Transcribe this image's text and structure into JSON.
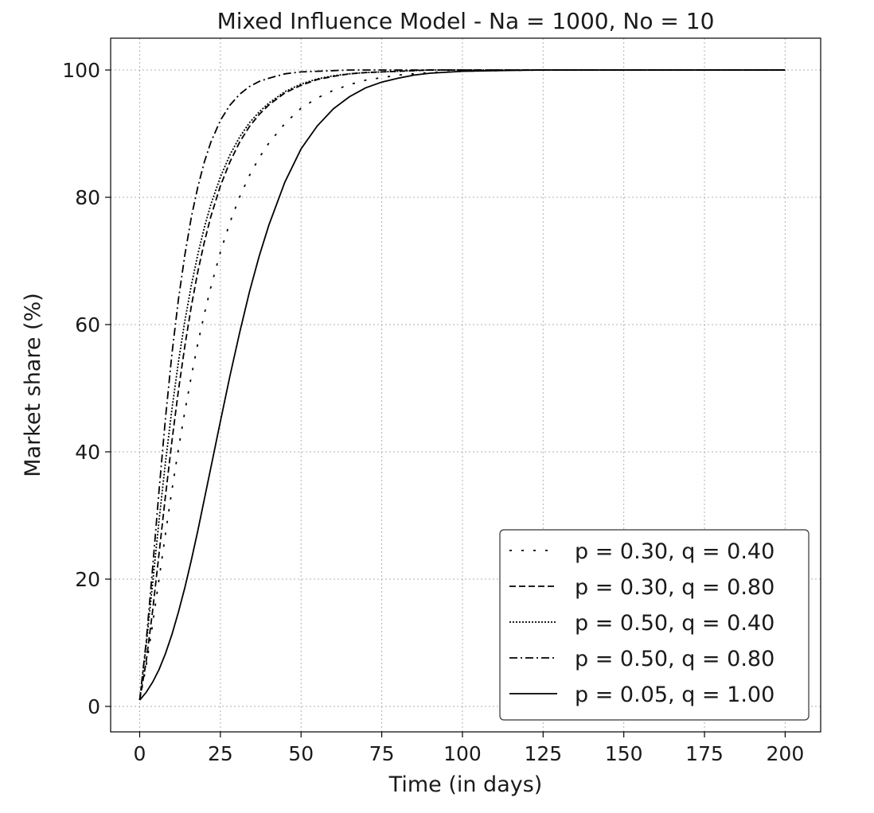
{
  "chart_data": {
    "type": "line",
    "title": "Mixed Influence Model - Na = 1000, No = 10",
    "xlabel": "Time (in days)",
    "ylabel": "Market share (%)",
    "xlim": [
      -9,
      211
    ],
    "ylim": [
      -4,
      105
    ],
    "xticks": [
      0,
      25,
      50,
      75,
      100,
      125,
      150,
      175,
      200
    ],
    "yticks": [
      0,
      20,
      40,
      60,
      80,
      100
    ],
    "grid": true,
    "legend_position": "bottom-right",
    "x": [
      0,
      2,
      4,
      6,
      8,
      10,
      12,
      14,
      16,
      18,
      20,
      22,
      25,
      28,
      31,
      34,
      37,
      40,
      45,
      50,
      55,
      60,
      65,
      70,
      75,
      80,
      85,
      90,
      100,
      110,
      125,
      150,
      175,
      200
    ],
    "series": [
      {
        "name": "p = 0.30, q = 0.40",
        "dash": "3 12",
        "values": [
          1.0,
          6.3,
          12.9,
          20.0,
          27.1,
          34.0,
          40.4,
          46.4,
          51.9,
          57.0,
          61.6,
          65.8,
          71.4,
          76.1,
          80.1,
          83.4,
          86.2,
          88.5,
          91.6,
          94.0,
          95.6,
          96.8,
          97.7,
          98.4,
          98.8,
          99.2,
          99.4,
          99.6,
          99.8,
          99.9,
          100.0,
          100.0,
          100.0,
          100.0
        ]
      },
      {
        "name": "p = 0.30, q = 0.80",
        "dash": "8 4",
        "values": [
          1.0,
          7.0,
          15.0,
          24.0,
          33.1,
          41.7,
          49.6,
          56.7,
          62.9,
          68.3,
          72.9,
          76.9,
          81.8,
          85.6,
          88.7,
          91.1,
          93.0,
          94.5,
          96.4,
          97.6,
          98.5,
          99.0,
          99.4,
          99.6,
          99.7,
          99.8,
          99.9,
          100.0,
          100.0,
          100.0,
          100.0,
          100.0,
          100.0,
          100.0
        ]
      },
      {
        "name": "p = 0.50, q = 0.40",
        "dash": "2 2",
        "values": [
          1.0,
          9.5,
          19.3,
          29.2,
          38.4,
          46.7,
          54.1,
          60.6,
          66.2,
          71.0,
          75.2,
          78.8,
          83.2,
          86.7,
          89.5,
          91.7,
          93.4,
          94.8,
          96.6,
          97.8,
          98.6,
          99.1,
          99.4,
          99.6,
          99.7,
          99.8,
          99.9,
          100.0,
          100.0,
          100.0,
          100.0,
          100.0,
          100.0,
          100.0
        ]
      },
      {
        "name": "p = 0.50, q = 0.80",
        "dash": "10 4 2 4",
        "values": [
          1.0,
          10.1,
          21.7,
          33.9,
          45.3,
          55.4,
          63.9,
          71.0,
          76.9,
          81.6,
          85.5,
          88.6,
          92.1,
          94.5,
          96.2,
          97.4,
          98.2,
          98.7,
          99.4,
          99.7,
          99.8,
          99.9,
          100.0,
          100.0,
          100.0,
          100.0,
          100.0,
          100.0,
          100.0,
          100.0,
          100.0,
          100.0,
          100.0,
          100.0
        ]
      },
      {
        "name": "p = 0.05, q = 1.00",
        "dash": "",
        "values": [
          1.0,
          2.2,
          3.8,
          5.8,
          8.3,
          11.3,
          14.8,
          18.7,
          23.0,
          27.6,
          32.5,
          37.4,
          44.8,
          52.0,
          58.8,
          65.1,
          70.7,
          75.6,
          82.4,
          87.6,
          91.2,
          93.9,
          95.8,
          97.2,
          98.1,
          98.7,
          99.2,
          99.5,
          99.8,
          99.9,
          100.0,
          100.0,
          100.0,
          100.0
        ]
      }
    ]
  }
}
